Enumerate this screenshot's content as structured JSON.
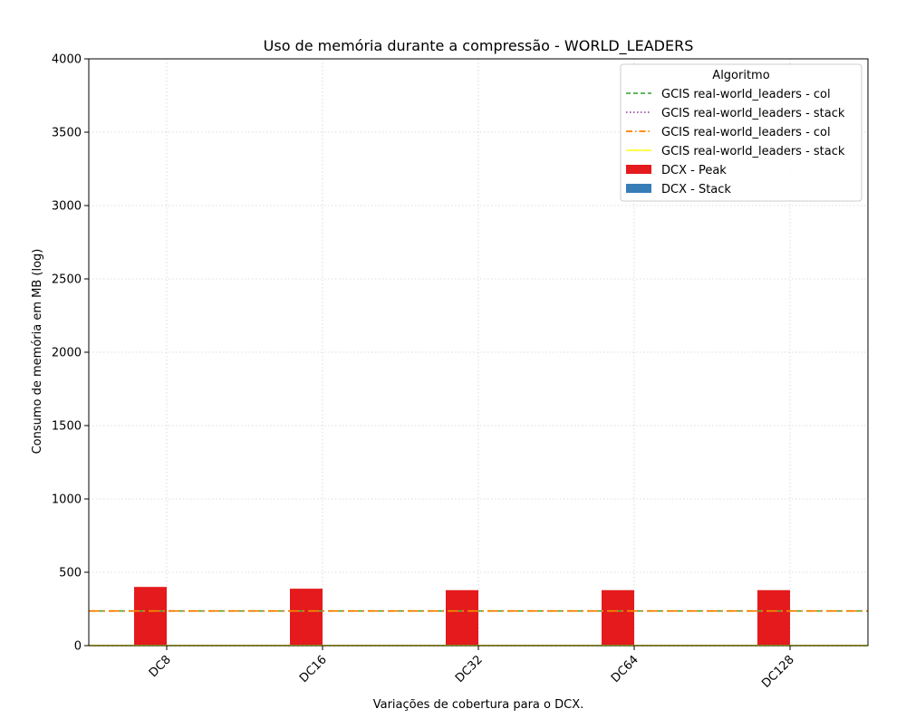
{
  "chart_data": {
    "type": "bar",
    "title": "Uso de memória durante a compressão -  WORLD_LEADERS",
    "xlabel": "Variações de cobertura para o DCX.",
    "ylabel": "Consumo de memória em MB (log)",
    "ylim": [
      0,
      4000
    ],
    "yticks": [
      "0",
      "500",
      "1000",
      "1500",
      "2000",
      "2500",
      "3000",
      "3500",
      "4000"
    ],
    "categories": [
      "DC8",
      "DC16",
      "DC32",
      "DC64",
      "DC128"
    ],
    "grid": true,
    "legend": {
      "title": "Algoritmo",
      "position": "top-right"
    },
    "bar_series": [
      {
        "name": "DCX - Peak",
        "color": "#e41a1c",
        "values": [
          400,
          388,
          378,
          378,
          378
        ]
      },
      {
        "name": "DCX - Stack",
        "color": "#377eb8",
        "values": [
          0,
          0,
          0,
          0,
          0
        ]
      }
    ],
    "reference_lines": [
      {
        "name": "GCIS real-world_leaders - col",
        "color": "#4daf4a",
        "style": "dashed",
        "value": 236
      },
      {
        "name": "GCIS real-world_leaders - stack",
        "color": "#984ea3",
        "style": "dotted",
        "value": 1
      },
      {
        "name": "GCIS real-world_leaders - col",
        "color": "#ff7f00",
        "style": "dashdot",
        "value": 236
      },
      {
        "name": "GCIS real-world_leaders - stack",
        "color": "#ffff33",
        "style": "solid",
        "value": 1
      }
    ]
  }
}
